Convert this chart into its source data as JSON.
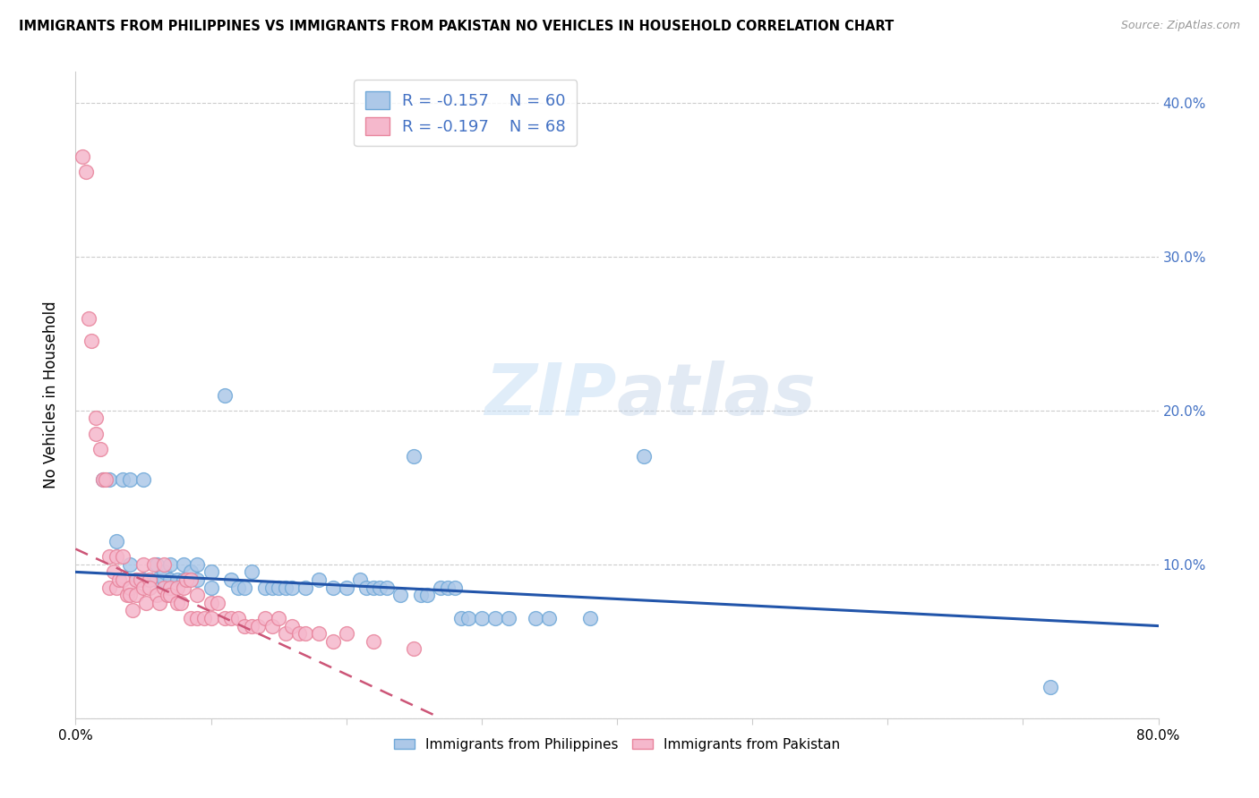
{
  "title": "IMMIGRANTS FROM PHILIPPINES VS IMMIGRANTS FROM PAKISTAN NO VEHICLES IN HOUSEHOLD CORRELATION CHART",
  "source": "Source: ZipAtlas.com",
  "ylabel": "No Vehicles in Household",
  "xlim": [
    0,
    0.8
  ],
  "ylim": [
    0.0,
    0.42
  ],
  "xticks": [
    0.0,
    0.1,
    0.2,
    0.3,
    0.4,
    0.5,
    0.6,
    0.7,
    0.8
  ],
  "yticks": [
    0.0,
    0.1,
    0.2,
    0.3,
    0.4
  ],
  "philippines_color": "#adc8e8",
  "pakistan_color": "#f5b8cc",
  "philippines_edge": "#6fa8d8",
  "pakistan_edge": "#e8849c",
  "trend_philippines_color": "#2255aa",
  "trend_pakistan_color": "#cc5577",
  "legend_R_philippines": "-0.157",
  "legend_N_philippines": "60",
  "legend_R_pakistan": "-0.197",
  "legend_N_pakistan": "68",
  "watermark": "ZIPatlas",
  "philippines_x": [
    0.02,
    0.025,
    0.03,
    0.035,
    0.04,
    0.04,
    0.045,
    0.05,
    0.05,
    0.055,
    0.06,
    0.06,
    0.065,
    0.065,
    0.07,
    0.07,
    0.075,
    0.08,
    0.08,
    0.085,
    0.09,
    0.09,
    0.1,
    0.1,
    0.11,
    0.115,
    0.12,
    0.125,
    0.13,
    0.14,
    0.145,
    0.15,
    0.155,
    0.16,
    0.17,
    0.18,
    0.19,
    0.2,
    0.21,
    0.215,
    0.22,
    0.225,
    0.23,
    0.24,
    0.25,
    0.255,
    0.26,
    0.27,
    0.275,
    0.28,
    0.285,
    0.29,
    0.3,
    0.31,
    0.32,
    0.34,
    0.35,
    0.38,
    0.42,
    0.72
  ],
  "philippines_y": [
    0.155,
    0.155,
    0.115,
    0.155,
    0.155,
    0.1,
    0.09,
    0.09,
    0.155,
    0.09,
    0.09,
    0.1,
    0.09,
    0.095,
    0.09,
    0.1,
    0.09,
    0.1,
    0.09,
    0.095,
    0.09,
    0.1,
    0.085,
    0.095,
    0.21,
    0.09,
    0.085,
    0.085,
    0.095,
    0.085,
    0.085,
    0.085,
    0.085,
    0.085,
    0.085,
    0.09,
    0.085,
    0.085,
    0.09,
    0.085,
    0.085,
    0.085,
    0.085,
    0.08,
    0.17,
    0.08,
    0.08,
    0.085,
    0.085,
    0.085,
    0.065,
    0.065,
    0.065,
    0.065,
    0.065,
    0.065,
    0.065,
    0.065,
    0.17,
    0.02
  ],
  "pakistan_x": [
    0.005,
    0.008,
    0.01,
    0.012,
    0.015,
    0.015,
    0.018,
    0.02,
    0.022,
    0.025,
    0.025,
    0.028,
    0.03,
    0.03,
    0.032,
    0.035,
    0.035,
    0.038,
    0.04,
    0.04,
    0.042,
    0.045,
    0.045,
    0.048,
    0.05,
    0.05,
    0.052,
    0.055,
    0.055,
    0.058,
    0.06,
    0.062,
    0.065,
    0.065,
    0.068,
    0.07,
    0.07,
    0.075,
    0.075,
    0.078,
    0.08,
    0.082,
    0.085,
    0.085,
    0.09,
    0.09,
    0.095,
    0.1,
    0.1,
    0.105,
    0.11,
    0.115,
    0.12,
    0.125,
    0.13,
    0.135,
    0.14,
    0.145,
    0.15,
    0.155,
    0.16,
    0.165,
    0.17,
    0.18,
    0.19,
    0.2,
    0.22,
    0.25
  ],
  "pakistan_y": [
    0.365,
    0.355,
    0.26,
    0.245,
    0.195,
    0.185,
    0.175,
    0.155,
    0.155,
    0.105,
    0.085,
    0.095,
    0.105,
    0.085,
    0.09,
    0.09,
    0.105,
    0.08,
    0.085,
    0.08,
    0.07,
    0.09,
    0.08,
    0.09,
    0.085,
    0.1,
    0.075,
    0.09,
    0.085,
    0.1,
    0.08,
    0.075,
    0.085,
    0.1,
    0.08,
    0.085,
    0.08,
    0.075,
    0.085,
    0.075,
    0.085,
    0.09,
    0.065,
    0.09,
    0.065,
    0.08,
    0.065,
    0.075,
    0.065,
    0.075,
    0.065,
    0.065,
    0.065,
    0.06,
    0.06,
    0.06,
    0.065,
    0.06,
    0.065,
    0.055,
    0.06,
    0.055,
    0.055,
    0.055,
    0.05,
    0.055,
    0.05,
    0.045
  ],
  "trend_ph_x0": 0.0,
  "trend_ph_x1": 0.8,
  "trend_ph_y0": 0.095,
  "trend_ph_y1": 0.06,
  "trend_pk_x0": 0.0,
  "trend_pk_x1": 0.27,
  "trend_pk_y0": 0.11,
  "trend_pk_y1": 0.0
}
